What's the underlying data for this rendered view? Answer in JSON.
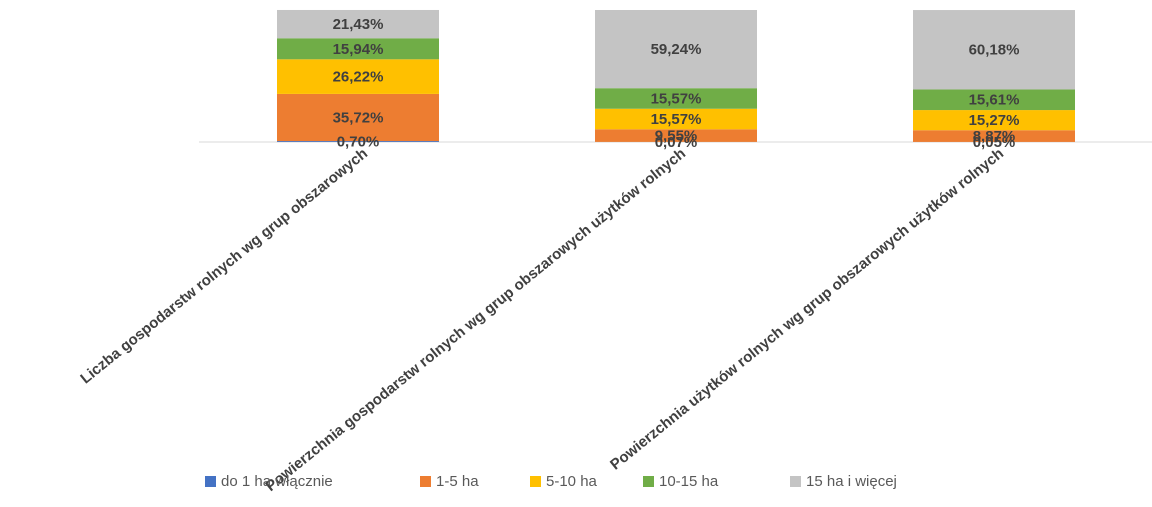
{
  "chart_data": {
    "type": "stacked_bar_100",
    "categories": [
      "Liczba gospodarstw rolnych wg grup obszarowych",
      "Powierzchnia gospodarstw rolnych wg grup obszarowych użytków rolnych",
      "Powierzchnia użytków rolnych wg grup obszarowych użytków rolnych"
    ],
    "series": [
      {
        "name": "do 1 ha włącznie",
        "color": "#4472c4",
        "values": [
          0.7,
          0.07,
          0.05
        ],
        "value_labels": [
          "0,70%",
          "0,07%",
          "0,05%"
        ]
      },
      {
        "name": "1-5 ha",
        "color": "#ed7d31",
        "values": [
          35.72,
          9.55,
          8.87
        ],
        "value_labels": [
          "35,72%",
          "9,55%",
          "8,87%"
        ]
      },
      {
        "name": "5-10 ha",
        "color": "#ffc000",
        "values": [
          26.22,
          15.57,
          15.27
        ],
        "value_labels": [
          "26,22%",
          "15,57%",
          "15,27%"
        ]
      },
      {
        "name": "10-15 ha",
        "color": "#70ad47",
        "values": [
          15.94,
          15.57,
          15.61
        ],
        "value_labels": [
          "15,94%",
          "15,57%",
          "15,61%"
        ]
      },
      {
        "name": "15 ha i więcej",
        "color": "#c4c4c4",
        "values": [
          21.43,
          59.24,
          60.18
        ],
        "value_labels": [
          "21,43%",
          "59,24%",
          "60,18%"
        ]
      }
    ],
    "ylim": [
      0,
      100
    ],
    "legend": "bottom"
  }
}
